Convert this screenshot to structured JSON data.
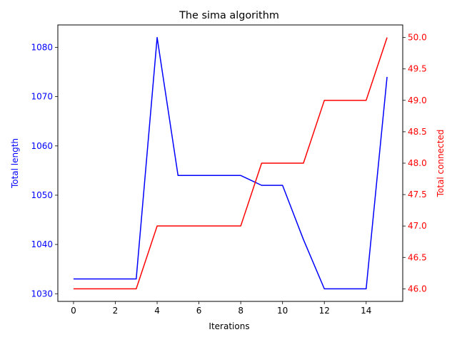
{
  "chart_data": {
    "type": "line",
    "title": "The sima algorithm",
    "xlabel": "Iterations",
    "ylabel_left": "Total length",
    "ylabel_right": "Total connected",
    "xlim": [
      -0.75,
      15.75
    ],
    "ylim_left": [
      1028.45,
      1084.55
    ],
    "ylim_right": [
      45.8,
      50.2
    ],
    "x_ticks": [
      0,
      2,
      4,
      6,
      8,
      10,
      12,
      14
    ],
    "y_left_ticks": [
      1030,
      1040,
      1050,
      1060,
      1070,
      1080
    ],
    "y_right_ticks": [
      46.0,
      46.5,
      47.0,
      47.5,
      48.0,
      48.5,
      49.0,
      49.5,
      50.0
    ],
    "grid": false,
    "series": [
      {
        "name": "Total length",
        "axis": "left",
        "color": "#0000ff",
        "x": [
          0,
          1,
          2,
          3,
          4,
          5,
          6,
          7,
          8,
          9,
          10,
          11,
          12,
          13,
          14,
          15
        ],
        "values": [
          1033,
          1033,
          1033,
          1033,
          1082,
          1054,
          1054,
          1054,
          1054,
          1052,
          1052,
          1041,
          1031,
          1031,
          1031,
          1074
        ]
      },
      {
        "name": "Total connected",
        "axis": "right",
        "color": "#ff0000",
        "x": [
          0,
          1,
          2,
          3,
          4,
          5,
          6,
          7,
          8,
          9,
          10,
          11,
          12,
          13,
          14,
          15
        ],
        "values": [
          46,
          46,
          46,
          46,
          47,
          47,
          47,
          47,
          47,
          48,
          48,
          48,
          49,
          49,
          49,
          50
        ]
      }
    ]
  }
}
